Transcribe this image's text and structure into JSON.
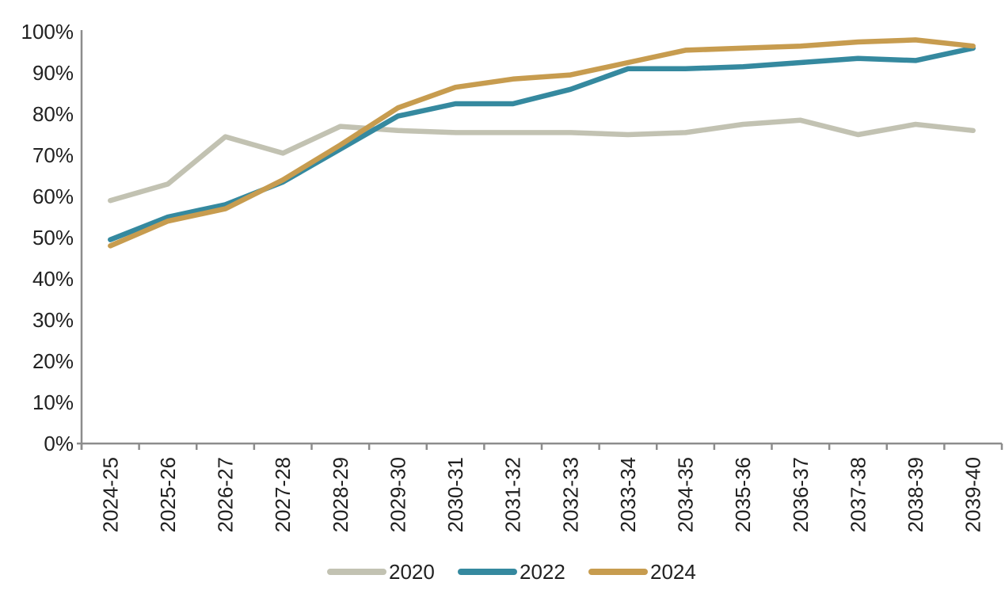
{
  "chart_data": {
    "type": "line",
    "title": "",
    "xlabel": "",
    "ylabel": "",
    "categories": [
      "2024-25",
      "2025-26",
      "2026-27",
      "2027-28",
      "2028-29",
      "2029-30",
      "2030-31",
      "2031-32",
      "2032-33",
      "2033-34",
      "2034-35",
      "2035-36",
      "2036-37",
      "2037-38",
      "2038-39",
      "2039-40"
    ],
    "series": [
      {
        "name": "2020",
        "color": "#c2c2b2",
        "values": [
          59,
          63,
          74.5,
          70.5,
          77,
          76,
          75.5,
          75.5,
          75.5,
          75,
          75.5,
          77.5,
          78.5,
          75,
          77.5,
          76
        ]
      },
      {
        "name": "2022",
        "color": "#35899f",
        "values": [
          49.5,
          55,
          58,
          63.5,
          71.5,
          79.5,
          82.5,
          82.5,
          86,
          91,
          91,
          91.5,
          92.5,
          93.5,
          93,
          96
        ]
      },
      {
        "name": "2024",
        "color": "#c79c4f",
        "values": [
          48,
          54,
          57,
          64,
          72.5,
          81.5,
          86.5,
          88.5,
          89.5,
          92.5,
          95.5,
          96,
          96.5,
          97.5,
          98,
          96.5
        ]
      }
    ],
    "ylim": [
      0,
      100
    ],
    "y_tick_step": 10,
    "y_tick_labels": [
      "0%",
      "10%",
      "20%",
      "30%",
      "40%",
      "50%",
      "60%",
      "70%",
      "80%",
      "90%",
      "100%"
    ],
    "grid": false,
    "legend_position": "bottom",
    "legend_labels": [
      "2020",
      "2022",
      "2024"
    ],
    "axis_color": "#8c8c8c",
    "text_color": "#212121"
  }
}
